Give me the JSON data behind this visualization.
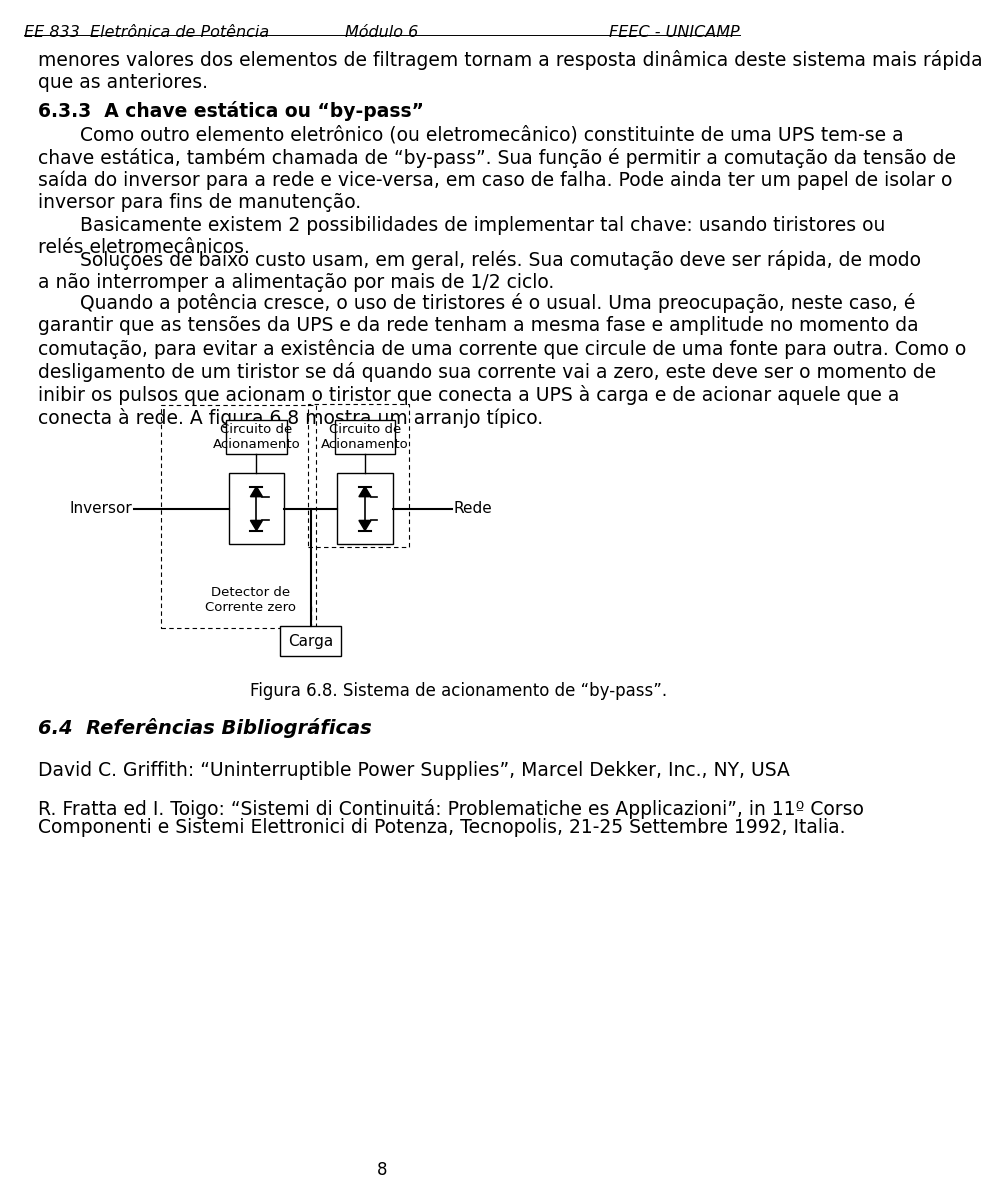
{
  "header_left": "EE 833  Eletrônica de Potência",
  "header_center": "Módulo 6",
  "header_right": "FEEC - UNICAMP",
  "bg_color": "#ffffff",
  "text_color": "#000000",
  "body_para0": "menores valores dos elementos de filtragem tornam a resposta dinâmica deste sistema mais rápida\nque as anteriores.",
  "section_heading_633": "6.3.3  A chave estática ou “by-pass”",
  "body_para1": "       Como outro elemento eletrônico (ou eletromecânico) constituinte de uma UPS tem-se a\nchave estática, também chamada de “by-pass”. Sua função é permitir a comutação da tensão de\nsaída do inversor para a rede e vice-versa, em caso de falha. Pode ainda ter um papel de isolar o\ninversor para fins de manutenção.",
  "body_para2": "       Basicamente existem 2 possibilidades de implementar tal chave: usando tiristores ou\nrelés eletromecânicos.",
  "body_para3": "       Soluções de baixo custo usam, em geral, relés. Sua comutação deve ser rápida, de modo\na não interromper a alimentação por mais de 1/2 ciclo.",
  "body_para4": "       Quando a potência cresce, o uso de tiristores é o usual. Uma preocupação, neste caso, é\ngarantir que as tensões da UPS e da rede tenham a mesma fase e amplitude no momento da\ncomutação, para evitar a existência de uma corrente que circule de uma fonte para outra. Como o\ndesligamento de um tiristor se dá quando sua corrente vai a zero, este deve ser o momento de\ninibir os pulsos que acionam o tiristor que conecta a UPS à carga e de acionar aquele que a\nconecta à rede. A figura 6.8 mostra um arranjo típico.",
  "fig_label_cc1": "Circuito de\nAcionamento",
  "fig_label_cc2": "Circuito de\nAcionamento",
  "fig_label_inversor": "Inversor",
  "fig_label_rede": "Rede",
  "fig_label_detector": "Detector de\nCorrente zero",
  "fig_label_carga": "Carga",
  "figure_caption": "Figura 6.8. Sistema de acionamento de “by-pass”.",
  "section_heading_64": "6.4  Referências Bibliográficas",
  "ref1": "David C. Griffith: “Uninterruptible Power Supplies”, Marcel Dekker, Inc., NY, USA",
  "ref2_line1": "R. Fratta ed I. Toigo: “Sistemi di Continuitá: Problematiche es Applicazioni”, in 11º Corso",
  "ref2_line2": "Componenti e Sistemi Elettronici di Potenza, Tecnopolis, 21-25 Settembre 1992, Italia.",
  "page_number": "8",
  "font_size_body": 13.5,
  "font_size_header": 11.5,
  "font_size_section": 14.0
}
